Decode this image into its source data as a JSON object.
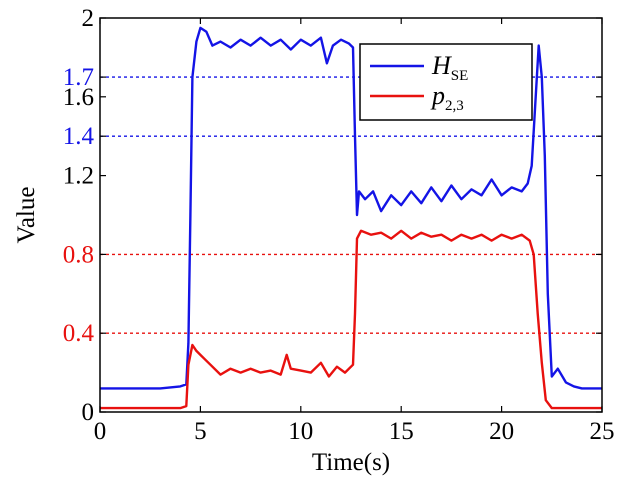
{
  "chart_data": {
    "type": "line",
    "title": "",
    "xlabel": "Time(s)",
    "ylabel": "Value",
    "xlim": [
      0,
      25
    ],
    "ylim": [
      0,
      2
    ],
    "x_ticks": [
      0,
      5,
      10,
      15,
      20,
      25
    ],
    "x_tick_labels": [
      "0",
      "5",
      "10",
      "15",
      "20",
      "25"
    ],
    "y_ticks": [
      {
        "value": 0,
        "label": "0",
        "color": "#000000"
      },
      {
        "value": 0.4,
        "label": "0.4",
        "color": "#e8110f"
      },
      {
        "value": 0.8,
        "label": "0.8",
        "color": "#e8110f"
      },
      {
        "value": 1.2,
        "label": "1.2",
        "color": "#000000"
      },
      {
        "value": 1.4,
        "label": "1.4",
        "color": "#1414e6"
      },
      {
        "value": 1.6,
        "label": "1.6",
        "color": "#000000"
      },
      {
        "value": 1.7,
        "label": "1.7",
        "color": "#1414e6"
      },
      {
        "value": 2,
        "label": "2",
        "color": "#000000"
      }
    ],
    "reference_lines": [
      {
        "value": 1.7,
        "color": "#1414e6",
        "style": "dotted"
      },
      {
        "value": 1.4,
        "color": "#1414e6",
        "style": "dotted"
      },
      {
        "value": 0.8,
        "color": "#e8110f",
        "style": "dotted"
      },
      {
        "value": 0.4,
        "color": "#e8110f",
        "style": "dotted"
      }
    ],
    "legend_position": "top-right",
    "series": [
      {
        "name": "H_SE",
        "legend_main": "H",
        "legend_sub": "SE",
        "color": "#1414e6",
        "points": [
          [
            0,
            0.12
          ],
          [
            1,
            0.12
          ],
          [
            2,
            0.12
          ],
          [
            3,
            0.12
          ],
          [
            4,
            0.13
          ],
          [
            4.3,
            0.14
          ],
          [
            4.4,
            0.35
          ],
          [
            4.5,
            1.0
          ],
          [
            4.6,
            1.7
          ],
          [
            4.8,
            1.88
          ],
          [
            5.0,
            1.95
          ],
          [
            5.3,
            1.93
          ],
          [
            5.6,
            1.86
          ],
          [
            6,
            1.88
          ],
          [
            6.5,
            1.85
          ],
          [
            7,
            1.89
          ],
          [
            7.5,
            1.86
          ],
          [
            8,
            1.9
          ],
          [
            8.5,
            1.86
          ],
          [
            9,
            1.89
          ],
          [
            9.5,
            1.84
          ],
          [
            10,
            1.89
          ],
          [
            10.5,
            1.86
          ],
          [
            11,
            1.9
          ],
          [
            11.3,
            1.77
          ],
          [
            11.6,
            1.86
          ],
          [
            12,
            1.89
          ],
          [
            12.4,
            1.87
          ],
          [
            12.6,
            1.85
          ],
          [
            12.7,
            1.4
          ],
          [
            12.8,
            1.0
          ],
          [
            12.9,
            1.12
          ],
          [
            13.2,
            1.08
          ],
          [
            13.6,
            1.12
          ],
          [
            14,
            1.02
          ],
          [
            14.5,
            1.1
          ],
          [
            15,
            1.05
          ],
          [
            15.5,
            1.12
          ],
          [
            16,
            1.06
          ],
          [
            16.5,
            1.14
          ],
          [
            17,
            1.07
          ],
          [
            17.5,
            1.15
          ],
          [
            18,
            1.08
          ],
          [
            18.5,
            1.13
          ],
          [
            19,
            1.1
          ],
          [
            19.5,
            1.18
          ],
          [
            20,
            1.1
          ],
          [
            20.5,
            1.14
          ],
          [
            21,
            1.12
          ],
          [
            21.3,
            1.16
          ],
          [
            21.5,
            1.25
          ],
          [
            21.7,
            1.6
          ],
          [
            21.85,
            1.86
          ],
          [
            22.0,
            1.7
          ],
          [
            22.15,
            1.3
          ],
          [
            22.3,
            0.6
          ],
          [
            22.5,
            0.18
          ],
          [
            22.8,
            0.22
          ],
          [
            23.2,
            0.15
          ],
          [
            23.6,
            0.13
          ],
          [
            24,
            0.12
          ],
          [
            24.5,
            0.12
          ],
          [
            25,
            0.12
          ]
        ]
      },
      {
        "name": "p_2,3",
        "legend_main": "p",
        "legend_sub": "2,3",
        "color": "#e8110f",
        "points": [
          [
            0,
            0.02
          ],
          [
            1,
            0.02
          ],
          [
            2,
            0.02
          ],
          [
            3,
            0.02
          ],
          [
            4,
            0.02
          ],
          [
            4.3,
            0.03
          ],
          [
            4.4,
            0.24
          ],
          [
            4.6,
            0.34
          ],
          [
            4.8,
            0.31
          ],
          [
            5.0,
            0.29
          ],
          [
            5.2,
            0.27
          ],
          [
            5.5,
            0.24
          ],
          [
            6,
            0.19
          ],
          [
            6.5,
            0.22
          ],
          [
            7,
            0.2
          ],
          [
            7.5,
            0.22
          ],
          [
            8,
            0.2
          ],
          [
            8.5,
            0.21
          ],
          [
            9,
            0.19
          ],
          [
            9.3,
            0.29
          ],
          [
            9.5,
            0.22
          ],
          [
            10,
            0.21
          ],
          [
            10.5,
            0.2
          ],
          [
            11,
            0.25
          ],
          [
            11.4,
            0.18
          ],
          [
            11.8,
            0.23
          ],
          [
            12.2,
            0.2
          ],
          [
            12.6,
            0.24
          ],
          [
            12.7,
            0.5
          ],
          [
            12.8,
            0.88
          ],
          [
            13,
            0.92
          ],
          [
            13.5,
            0.9
          ],
          [
            14,
            0.91
          ],
          [
            14.5,
            0.88
          ],
          [
            15,
            0.92
          ],
          [
            15.5,
            0.88
          ],
          [
            16,
            0.91
          ],
          [
            16.5,
            0.89
          ],
          [
            17,
            0.9
          ],
          [
            17.5,
            0.87
          ],
          [
            18,
            0.9
          ],
          [
            18.5,
            0.88
          ],
          [
            19,
            0.9
          ],
          [
            19.5,
            0.87
          ],
          [
            20,
            0.9
          ],
          [
            20.5,
            0.88
          ],
          [
            21,
            0.9
          ],
          [
            21.4,
            0.87
          ],
          [
            21.6,
            0.8
          ],
          [
            21.8,
            0.5
          ],
          [
            22.0,
            0.25
          ],
          [
            22.2,
            0.06
          ],
          [
            22.5,
            0.02
          ],
          [
            23,
            0.02
          ],
          [
            24,
            0.02
          ],
          [
            25,
            0.02
          ]
        ]
      }
    ]
  }
}
